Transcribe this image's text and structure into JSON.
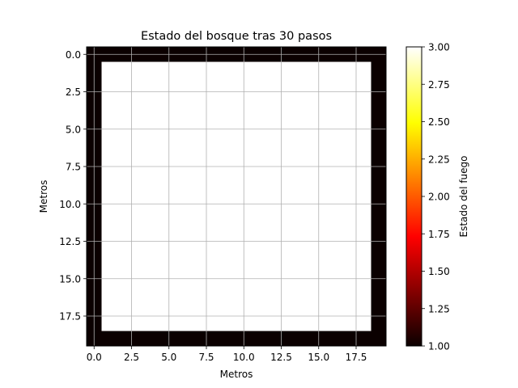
{
  "chart_data": {
    "type": "heatmap",
    "title": "Estado del bosque tras 30 pasos",
    "xlabel": "Metros",
    "ylabel": "Metros",
    "grid_size": [
      20,
      20
    ],
    "xlim": [
      -0.5,
      19.5
    ],
    "ylim": [
      19.5,
      -0.5
    ],
    "grid": true,
    "colormap": "hot",
    "cells": {
      "border_value": 1.0,
      "interior_value": 3.0,
      "interior_range": [
        1,
        18
      ]
    },
    "xticks": [
      "0.0",
      "2.5",
      "5.0",
      "7.5",
      "10.0",
      "12.5",
      "15.0",
      "17.5"
    ],
    "xtick_values": [
      0,
      2.5,
      5,
      7.5,
      10,
      12.5,
      15,
      17.5
    ],
    "yticks": [
      "0.0",
      "2.5",
      "5.0",
      "7.5",
      "10.0",
      "12.5",
      "15.0",
      "17.5"
    ],
    "ytick_values": [
      0,
      2.5,
      5,
      7.5,
      10,
      12.5,
      15,
      17.5
    ],
    "colorbar": {
      "label": "Estado del fuego",
      "range": [
        1.0,
        3.0
      ],
      "ticks": [
        "1.00",
        "1.25",
        "1.50",
        "1.75",
        "2.00",
        "2.25",
        "2.50",
        "2.75",
        "3.00"
      ],
      "tick_values": [
        1.0,
        1.25,
        1.5,
        1.75,
        2.0,
        2.25,
        2.5,
        2.75,
        3.0
      ]
    },
    "colors": {
      "border": "#0b0000",
      "interior": "#ffffff",
      "grid": "#b0b0b0"
    }
  }
}
